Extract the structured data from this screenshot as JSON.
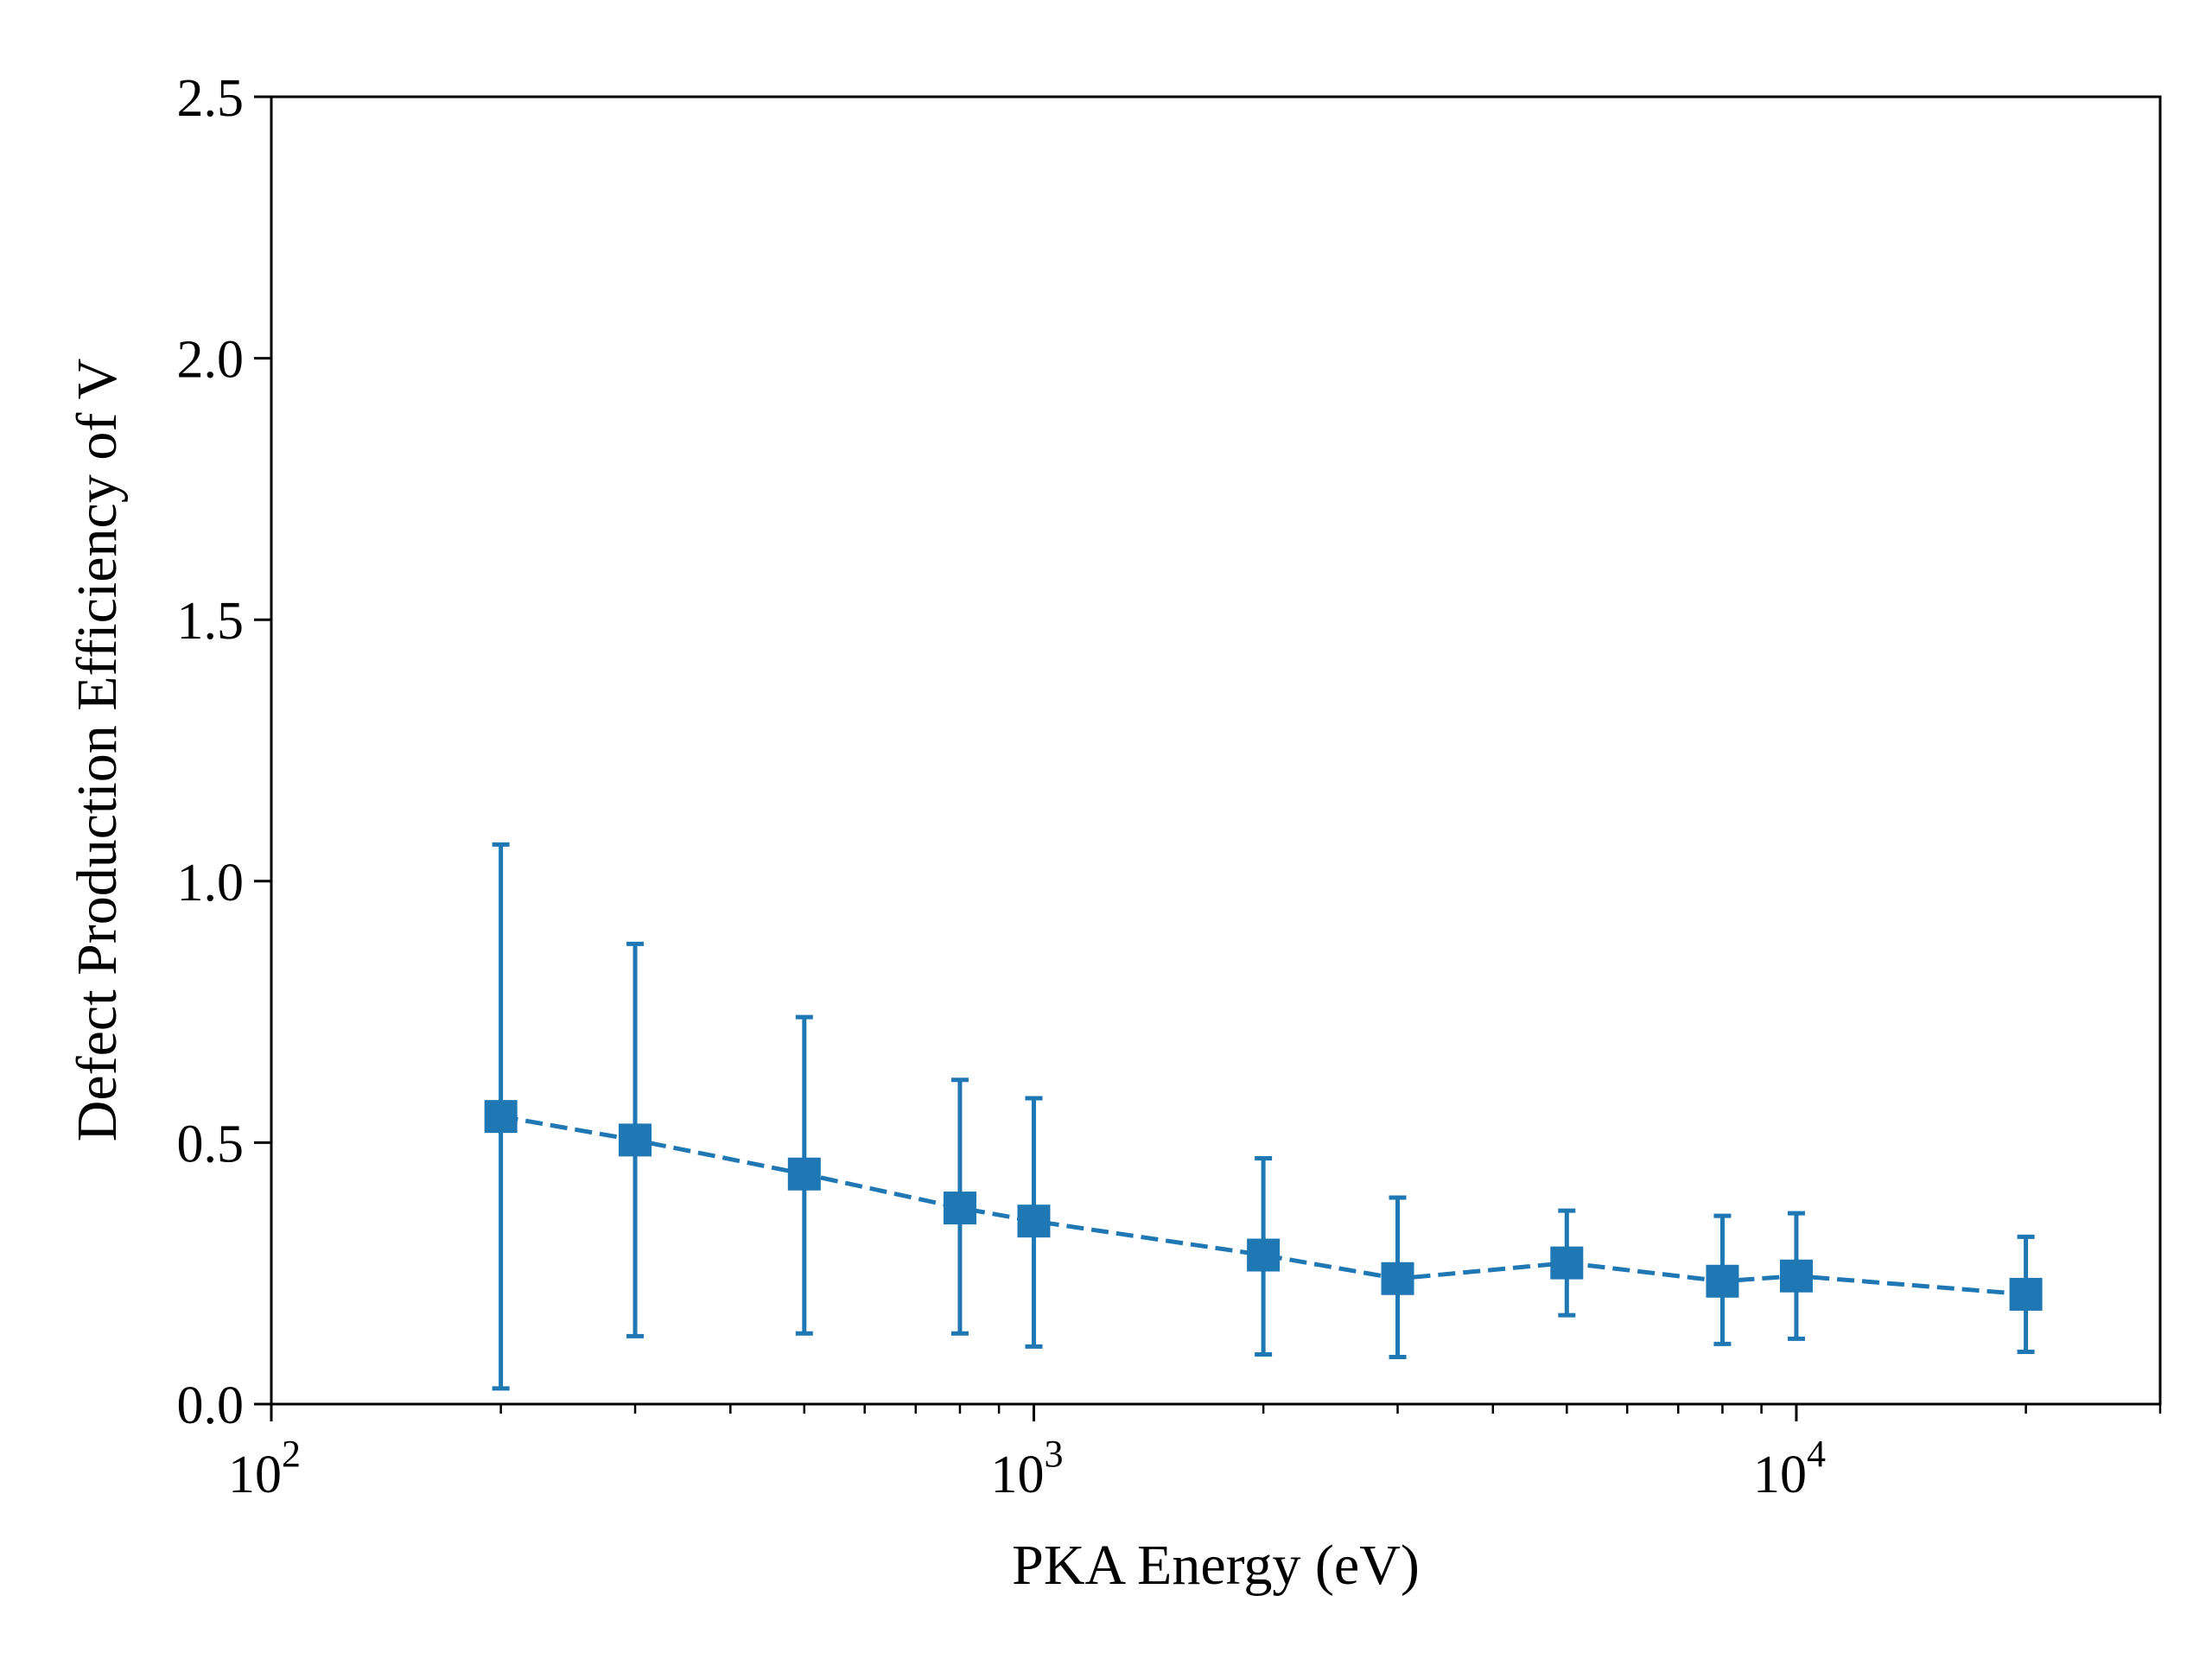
{
  "chart_data": {
    "type": "scatter",
    "xlabel": "PKA Energy (eV)",
    "ylabel": "Defect Production Efficiency of V",
    "xscale": "log",
    "xlim": [
      100,
      30000
    ],
    "ylim": [
      0,
      2.5
    ],
    "yticks": [
      "0.0",
      "0.5",
      "1.0",
      "1.5",
      "2.0",
      "2.5"
    ],
    "xticks": [
      {
        "base": "10",
        "exp": "2",
        "value": 100
      },
      {
        "base": "10",
        "exp": "3",
        "value": 1000
      },
      {
        "base": "10",
        "exp": "4",
        "value": 10000
      }
    ],
    "grid": false,
    "legend": "none",
    "series": [
      {
        "color": "#1f77b4",
        "marker": "square",
        "linestyle": "dashed",
        "points": [
          {
            "x": 200,
            "y": 0.55,
            "ylow": 0.03,
            "yhigh": 1.07
          },
          {
            "x": 300,
            "y": 0.505,
            "ylow": 0.13,
            "yhigh": 0.88
          },
          {
            "x": 500,
            "y": 0.44,
            "ylow": 0.135,
            "yhigh": 0.74
          },
          {
            "x": 800,
            "y": 0.375,
            "ylow": 0.135,
            "yhigh": 0.62
          },
          {
            "x": 1000,
            "y": 0.35,
            "ylow": 0.11,
            "yhigh": 0.585
          },
          {
            "x": 2000,
            "y": 0.285,
            "ylow": 0.095,
            "yhigh": 0.47
          },
          {
            "x": 3000,
            "y": 0.24,
            "ylow": 0.09,
            "yhigh": 0.395
          },
          {
            "x": 5000,
            "y": 0.27,
            "ylow": 0.17,
            "yhigh": 0.37
          },
          {
            "x": 8000,
            "y": 0.235,
            "ylow": 0.115,
            "yhigh": 0.36
          },
          {
            "x": 10000,
            "y": 0.245,
            "ylow": 0.125,
            "yhigh": 0.365
          },
          {
            "x": 20000,
            "y": 0.21,
            "ylow": 0.1,
            "yhigh": 0.32
          }
        ]
      }
    ]
  }
}
